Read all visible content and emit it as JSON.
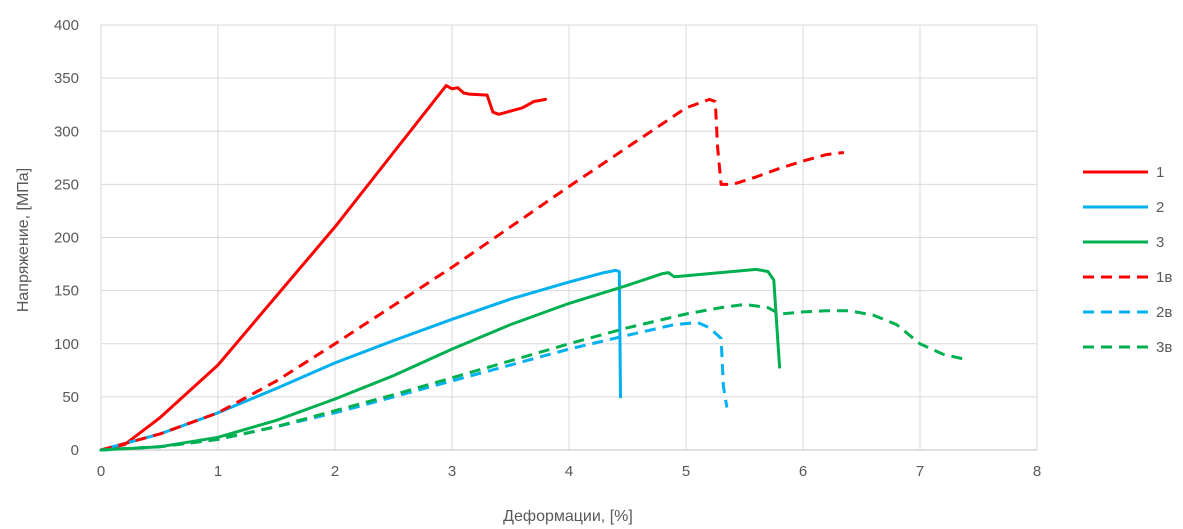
{
  "chart_data": {
    "type": "line",
    "xlabel": "Деформации, [%]",
    "ylabel": "Напряжение, [МПа]",
    "xlim": [
      0,
      8
    ],
    "ylim": [
      0,
      400
    ],
    "x_ticks": [
      "0",
      "1",
      "2",
      "3",
      "4",
      "5",
      "6",
      "7",
      "8"
    ],
    "y_ticks": [
      "0",
      "50",
      "100",
      "150",
      "200",
      "250",
      "300",
      "350",
      "400"
    ],
    "grid": true,
    "legend_position": "right",
    "series": [
      {
        "name": "1",
        "color": "#ff0000",
        "dash": "solid",
        "x": [
          0,
          0.2,
          0.5,
          1,
          1.5,
          2,
          2.5,
          2.95,
          3.0,
          3.05,
          3.1,
          3.15,
          3.3,
          3.35,
          3.4,
          3.5,
          3.6,
          3.7,
          3.8
        ],
        "y": [
          0,
          5,
          30,
          80,
          145,
          210,
          280,
          343,
          340,
          341,
          336,
          335,
          334,
          318,
          316,
          319,
          322,
          328,
          330
        ]
      },
      {
        "name": "2",
        "color": "#00b0f0",
        "dash": "solid",
        "x": [
          0,
          0.5,
          1,
          1.5,
          2,
          2.5,
          3,
          3.5,
          4,
          4.3,
          4.4,
          4.43,
          4.44
        ],
        "y": [
          0,
          15,
          35,
          58,
          82,
          103,
          123,
          142,
          158,
          167,
          169,
          168,
          50
        ]
      },
      {
        "name": "3",
        "color": "#00b050",
        "dash": "solid",
        "x": [
          0,
          0.5,
          1,
          1.5,
          2,
          2.5,
          3,
          3.5,
          4,
          4.5,
          4.8,
          4.85,
          4.9,
          5.0,
          5.2,
          5.4,
          5.6,
          5.7,
          5.75,
          5.78,
          5.8
        ],
        "y": [
          0,
          3,
          12,
          28,
          48,
          70,
          95,
          118,
          138,
          155,
          166,
          167,
          163,
          164,
          166,
          168,
          170,
          168,
          160,
          110,
          78
        ]
      },
      {
        "name": "1в",
        "color": "#ff0000",
        "dash": "dash",
        "x": [
          0,
          0.5,
          1,
          1.5,
          2,
          2.5,
          3,
          3.5,
          4,
          4.5,
          5.0,
          5.2,
          5.25,
          5.27,
          5.3,
          5.4,
          5.6,
          5.8,
          6.0,
          6.2,
          6.35
        ],
        "y": [
          0,
          15,
          35,
          65,
          100,
          136,
          172,
          210,
          248,
          285,
          322,
          330,
          328,
          285,
          250,
          250,
          257,
          265,
          272,
          278,
          280
        ]
      },
      {
        "name": "2в",
        "color": "#00b0f0",
        "dash": "dash",
        "x": [
          0,
          0.5,
          1,
          1.5,
          2,
          2.5,
          3,
          3.5,
          4,
          4.5,
          4.9,
          5.1,
          5.2,
          5.3,
          5.32,
          5.35
        ],
        "y": [
          0,
          3,
          10,
          22,
          35,
          50,
          65,
          80,
          95,
          108,
          118,
          120,
          115,
          105,
          60,
          40
        ]
      },
      {
        "name": "3в",
        "color": "#00b050",
        "dash": "dash",
        "x": [
          0,
          0.5,
          1,
          1.5,
          2,
          2.5,
          3,
          3.5,
          4,
          4.5,
          5.0,
          5.3,
          5.5,
          5.7,
          5.8,
          6.0,
          6.2,
          6.4,
          6.6,
          6.8,
          7.0,
          7.2,
          7.4
        ],
        "y": [
          0,
          3,
          10,
          22,
          37,
          52,
          68,
          84,
          100,
          115,
          128,
          134,
          137,
          134,
          128,
          130,
          131,
          131,
          127,
          118,
          100,
          90,
          85
        ]
      }
    ]
  }
}
